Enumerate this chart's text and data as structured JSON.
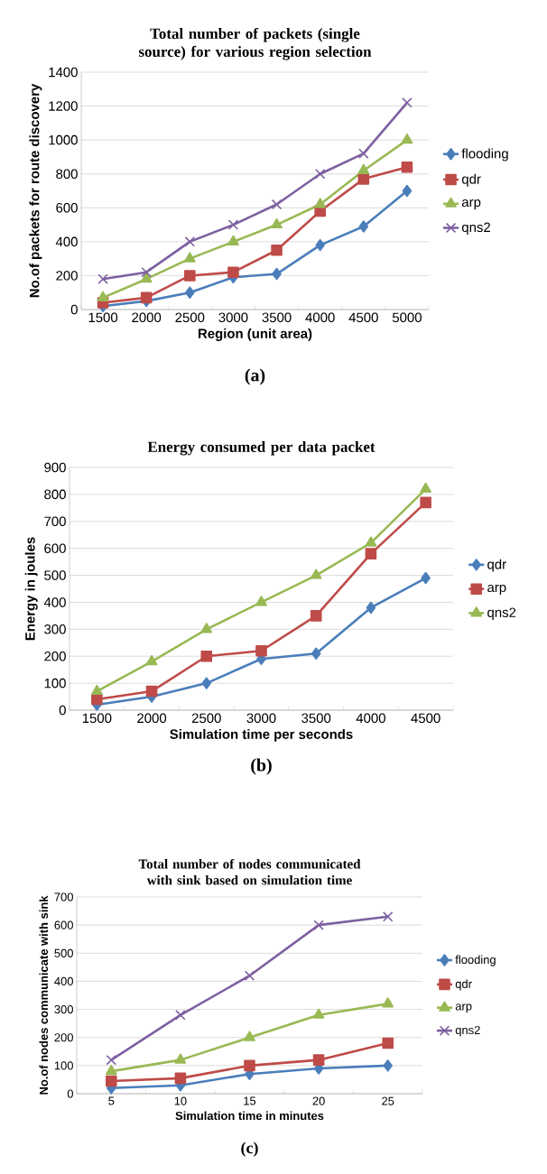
{
  "chart_data": [
    {
      "type": "line",
      "title": "Total number of packets (single source) for various region selection",
      "xlabel": "Region (unit area)",
      "ylabel": "No.of packets for route discovery",
      "categories": [
        "1500",
        "2000",
        "2500",
        "3000",
        "3500",
        "4000",
        "4500",
        "5000"
      ],
      "ylim": [
        0,
        1400
      ],
      "yticks": [
        0,
        200,
        400,
        600,
        800,
        1000,
        1200,
        1400
      ],
      "grid": "y",
      "legend": "right",
      "annotations": [
        "(a)"
      ],
      "series": [
        {
          "name": "flooding",
          "color": "#4a7ebb",
          "marker": "diamond",
          "values": [
            20,
            50,
            100,
            190,
            210,
            380,
            490,
            700
          ]
        },
        {
          "name": "qdr",
          "color": "#be4b48",
          "marker": "square",
          "values": [
            40,
            70,
            200,
            220,
            350,
            580,
            770,
            840
          ]
        },
        {
          "name": "arp",
          "color": "#98b954",
          "marker": "triangle",
          "values": [
            70,
            180,
            300,
            400,
            500,
            620,
            820,
            1000
          ]
        },
        {
          "name": "qns2",
          "color": "#7d60a0",
          "marker": "cross",
          "values": [
            180,
            220,
            400,
            500,
            620,
            800,
            920,
            1220
          ]
        }
      ]
    },
    {
      "type": "line",
      "title": "Energy consumed per data packet",
      "xlabel": "Simulation time per seconds",
      "ylabel": "Energy in joules",
      "categories": [
        "1500",
        "2000",
        "2500",
        "3000",
        "3500",
        "4000",
        "4500"
      ],
      "ylim": [
        0,
        900
      ],
      "yticks": [
        0,
        100,
        200,
        300,
        400,
        500,
        600,
        700,
        800,
        900
      ],
      "grid": "y",
      "legend": "right",
      "annotations": [
        "(b)"
      ],
      "series": [
        {
          "name": "qdr",
          "color": "#4a7ebb",
          "marker": "diamond",
          "values": [
            20,
            50,
            100,
            190,
            210,
            380,
            490
          ]
        },
        {
          "name": "arp",
          "color": "#be4b48",
          "marker": "square",
          "values": [
            40,
            70,
            200,
            220,
            350,
            580,
            770
          ]
        },
        {
          "name": "qns2",
          "color": "#98b954",
          "marker": "triangle",
          "values": [
            70,
            180,
            300,
            400,
            500,
            620,
            820
          ]
        }
      ]
    },
    {
      "type": "line",
      "title": "Total number of nodes communicated with sink based on simulation time",
      "xlabel": "Simulation time in minutes",
      "ylabel": "No.of nodes communicate with sink",
      "categories": [
        "5",
        "10",
        "15",
        "20",
        "25"
      ],
      "ylim": [
        0,
        700
      ],
      "yticks": [
        0,
        100,
        200,
        300,
        400,
        500,
        600,
        700
      ],
      "grid": "y",
      "legend": "right",
      "annotations": [
        "(c)"
      ],
      "series": [
        {
          "name": "flooding",
          "color": "#4a7ebb",
          "marker": "diamond",
          "values": [
            20,
            30,
            70,
            90,
            100
          ]
        },
        {
          "name": "qdr",
          "color": "#be4b48",
          "marker": "square",
          "values": [
            45,
            55,
            100,
            120,
            180
          ]
        },
        {
          "name": "arp",
          "color": "#98b954",
          "marker": "triangle",
          "values": [
            80,
            120,
            200,
            280,
            320
          ]
        },
        {
          "name": "qns2",
          "color": "#7d60a0",
          "marker": "cross",
          "values": [
            120,
            280,
            420,
            600,
            630
          ]
        }
      ]
    }
  ]
}
